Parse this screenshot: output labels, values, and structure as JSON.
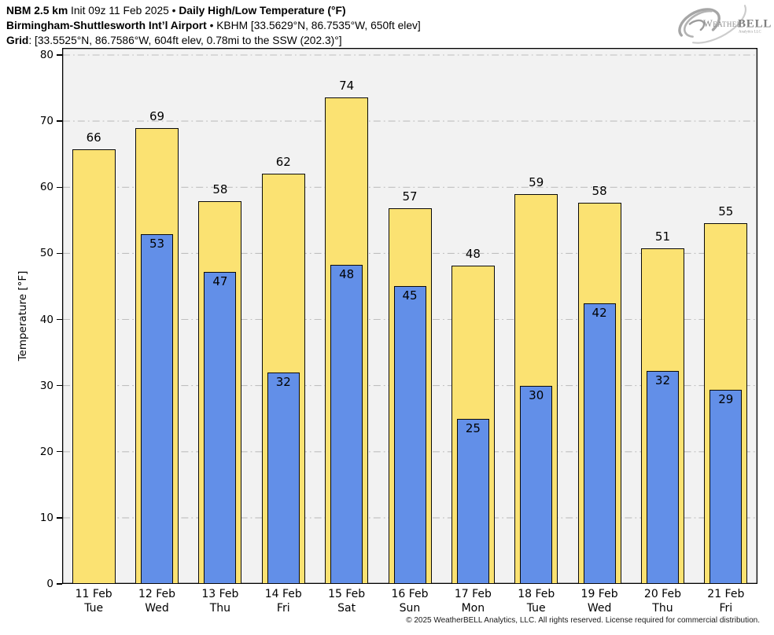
{
  "header": {
    "line1_bold": "NBM 2.5 km",
    "line1_mid": " Init 09z 11 Feb 2025 • ",
    "line1_bold2": "Daily High/Low Temperature (°F)",
    "line2_bold": "Birmingham-Shuttlesworth Int’l Airport",
    "line2_rest": " • KBHM [33.5629°N, 86.7535°W, 650ft elev]",
    "line3_bold": "Grid",
    "line3_rest": ": [33.5525°N, 86.7586°W, 604ft elev, 0.78mi to the SSW (202.3)°]"
  },
  "logo": {
    "word_weather": "Weather",
    "word_bell": "BELL",
    "subtext": "Analytics LLC"
  },
  "footer": {
    "copyright": "© 2025 WeatherBELL Analytics, LLC. All rights reserved. License required for commercial distribution."
  },
  "colors": {
    "high_fill": "#FBE272",
    "low_fill": "#628FE8",
    "bar_border": "#0a0a0a",
    "plot_bg": "#F2F2F2",
    "grid_line": "#bfbfbf",
    "spine": "#000000"
  },
  "chart_data": {
    "type": "bar",
    "title": "NBM 2.5 km Init 09z 11 Feb 2025 • Daily High/Low Temperature (°F)",
    "subtitle": "Birmingham-Shuttlesworth Int’l Airport • KBHM",
    "xlabel": "",
    "ylabel": "Temperature [°F]",
    "ylim": [
      0,
      81
    ],
    "yticks": [
      0,
      10,
      20,
      30,
      40,
      50,
      60,
      70,
      80
    ],
    "grid": "horizontal dash-dot",
    "legend_position": "none",
    "categories": [
      {
        "date": "11 Feb",
        "day": "Tue"
      },
      {
        "date": "12 Feb",
        "day": "Wed"
      },
      {
        "date": "13 Feb",
        "day": "Thu"
      },
      {
        "date": "14 Feb",
        "day": "Fri"
      },
      {
        "date": "15 Feb",
        "day": "Sat"
      },
      {
        "date": "16 Feb",
        "day": "Sun"
      },
      {
        "date": "17 Feb",
        "day": "Mon"
      },
      {
        "date": "18 Feb",
        "day": "Tue"
      },
      {
        "date": "19 Feb",
        "day": "Wed"
      },
      {
        "date": "20 Feb",
        "day": "Thu"
      },
      {
        "date": "21 Feb",
        "day": "Fri"
      }
    ],
    "series": [
      {
        "name": "Daily High",
        "color": "#FBE272",
        "values": [
          66,
          69,
          58,
          62,
          74,
          57,
          48,
          59,
          58,
          51,
          55
        ],
        "bar_tops": [
          65.7,
          68.9,
          57.9,
          62.1,
          73.6,
          56.8,
          48.2,
          59.0,
          57.6,
          50.8,
          54.6
        ]
      },
      {
        "name": "Daily Low",
        "color": "#628FE8",
        "values": [
          null,
          53,
          47,
          32,
          48,
          45,
          25,
          30,
          42,
          32,
          29
        ],
        "bar_tops": [
          null,
          52.9,
          47.2,
          32.0,
          48.3,
          45.1,
          25.0,
          30.0,
          42.4,
          32.2,
          29.4
        ]
      }
    ]
  }
}
